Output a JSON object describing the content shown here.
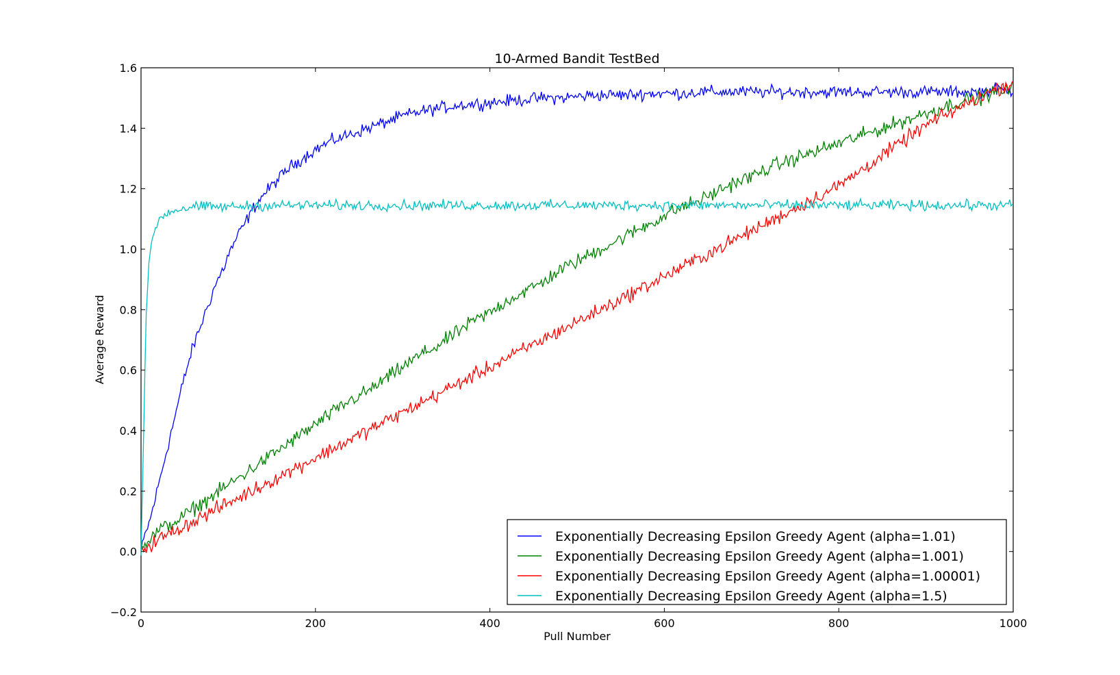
{
  "chart_data": {
    "type": "line",
    "title": "10-Armed Bandit TestBed",
    "xlabel": "Pull Number",
    "ylabel": "Average Reward",
    "xlim": [
      0,
      1000
    ],
    "ylim": [
      -0.2,
      1.6
    ],
    "xticks": [
      "0",
      "200",
      "400",
      "600",
      "800",
      "1000"
    ],
    "yticks": [
      "−0.2",
      "0.0",
      "0.2",
      "0.4",
      "0.6",
      "0.8",
      "1.0",
      "1.2",
      "1.4",
      "1.6"
    ],
    "grid": false,
    "legend_position": "lower-right",
    "series": [
      {
        "name": "Exponentially Decreasing Epsilon Greedy Agent (alpha=1.01)",
        "color": "#0000ff",
        "x": [
          0,
          5,
          10,
          15,
          20,
          25,
          30,
          35,
          40,
          45,
          50,
          55,
          60,
          65,
          70,
          75,
          80,
          85,
          90,
          95,
          100,
          110,
          120,
          130,
          140,
          150,
          160,
          170,
          180,
          190,
          200,
          220,
          240,
          260,
          280,
          300,
          320,
          340,
          360,
          380,
          400,
          420,
          440,
          460,
          480,
          500,
          520,
          540,
          560,
          580,
          600,
          620,
          640,
          660,
          680,
          700,
          720,
          740,
          760,
          780,
          800,
          820,
          840,
          860,
          880,
          900,
          920,
          940,
          960,
          980,
          1000
        ],
        "values": [
          0.0,
          0.06,
          0.1,
          0.16,
          0.22,
          0.28,
          0.34,
          0.4,
          0.46,
          0.52,
          0.58,
          0.63,
          0.68,
          0.72,
          0.76,
          0.8,
          0.84,
          0.88,
          0.91,
          0.94,
          0.98,
          1.04,
          1.09,
          1.14,
          1.18,
          1.21,
          1.24,
          1.27,
          1.29,
          1.31,
          1.33,
          1.36,
          1.38,
          1.4,
          1.42,
          1.44,
          1.455,
          1.465,
          1.475,
          1.48,
          1.485,
          1.49,
          1.495,
          1.5,
          1.5,
          1.505,
          1.51,
          1.51,
          1.51,
          1.515,
          1.515,
          1.515,
          1.52,
          1.52,
          1.52,
          1.52,
          1.52,
          1.52,
          1.52,
          1.52,
          1.52,
          1.52,
          1.52,
          1.52,
          1.52,
          1.52,
          1.52,
          1.52,
          1.52,
          1.53,
          1.52
        ]
      },
      {
        "name": "Exponentially Decreasing Epsilon Greedy Agent (alpha=1.001)",
        "color": "#008000",
        "x": [
          0,
          10,
          20,
          40,
          60,
          80,
          100,
          120,
          140,
          160,
          180,
          200,
          220,
          240,
          260,
          280,
          300,
          320,
          340,
          360,
          380,
          400,
          420,
          440,
          460,
          480,
          500,
          520,
          540,
          560,
          580,
          600,
          620,
          640,
          660,
          680,
          700,
          720,
          740,
          760,
          780,
          800,
          820,
          840,
          860,
          880,
          900,
          920,
          940,
          960,
          980,
          1000
        ],
        "values": [
          0.02,
          0.04,
          0.07,
          0.1,
          0.14,
          0.18,
          0.22,
          0.26,
          0.3,
          0.34,
          0.38,
          0.42,
          0.46,
          0.5,
          0.53,
          0.57,
          0.61,
          0.65,
          0.68,
          0.72,
          0.76,
          0.79,
          0.83,
          0.86,
          0.89,
          0.93,
          0.96,
          0.99,
          1.02,
          1.05,
          1.08,
          1.11,
          1.14,
          1.16,
          1.19,
          1.22,
          1.24,
          1.27,
          1.29,
          1.31,
          1.33,
          1.35,
          1.37,
          1.39,
          1.41,
          1.43,
          1.45,
          1.47,
          1.49,
          1.5,
          1.52,
          1.53
        ]
      },
      {
        "name": "Exponentially Decreasing Epsilon Greedy Agent (alpha=1.00001)",
        "color": "#ff0000",
        "x": [
          0,
          10,
          20,
          40,
          60,
          80,
          100,
          120,
          140,
          160,
          180,
          200,
          220,
          240,
          260,
          280,
          300,
          320,
          340,
          360,
          380,
          400,
          420,
          440,
          460,
          480,
          500,
          520,
          540,
          560,
          580,
          600,
          620,
          640,
          660,
          680,
          700,
          720,
          740,
          760,
          780,
          800,
          820,
          840,
          860,
          880,
          900,
          920,
          940,
          960,
          980,
          1000
        ],
        "values": [
          0.01,
          0.02,
          0.04,
          0.07,
          0.1,
          0.13,
          0.16,
          0.19,
          0.22,
          0.25,
          0.28,
          0.31,
          0.34,
          0.37,
          0.4,
          0.43,
          0.46,
          0.49,
          0.52,
          0.55,
          0.58,
          0.61,
          0.64,
          0.67,
          0.7,
          0.73,
          0.76,
          0.79,
          0.82,
          0.85,
          0.88,
          0.91,
          0.94,
          0.97,
          1.0,
          1.03,
          1.06,
          1.09,
          1.12,
          1.15,
          1.18,
          1.21,
          1.25,
          1.29,
          1.33,
          1.37,
          1.41,
          1.44,
          1.47,
          1.5,
          1.53,
          1.55
        ]
      },
      {
        "name": "Exponentially Decreasing Epsilon Greedy Agent (alpha=1.5)",
        "color": "#00bfbf",
        "x": [
          0,
          2,
          4,
          6,
          8,
          10,
          12,
          15,
          18,
          21,
          25,
          30,
          40,
          60,
          80,
          100,
          150,
          200,
          300,
          400,
          500,
          600,
          700,
          800,
          900,
          1000
        ],
        "values": [
          0.0,
          0.25,
          0.55,
          0.78,
          0.9,
          0.97,
          1.02,
          1.06,
          1.08,
          1.1,
          1.11,
          1.12,
          1.13,
          1.14,
          1.14,
          1.14,
          1.145,
          1.145,
          1.145,
          1.145,
          1.145,
          1.145,
          1.145,
          1.145,
          1.145,
          1.145
        ]
      }
    ]
  }
}
